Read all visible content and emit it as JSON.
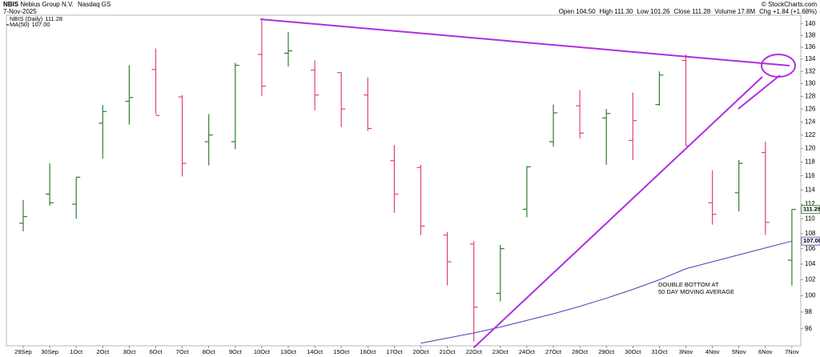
{
  "header": {
    "ticker": "NBIS",
    "company": "Nebius Group N.V.",
    "exchange": "Nasdaq GS",
    "date": "7-Nov-2025",
    "source": "© StockCharts.com",
    "quote": [
      {
        "label": "Open",
        "value": "104.50"
      },
      {
        "label": "High",
        "value": "111.30"
      },
      {
        "label": "Low",
        "value": "101.26"
      },
      {
        "label": "Close",
        "value": "111.28"
      },
      {
        "label": "Volume",
        "value": "17.8M"
      },
      {
        "label": "Chg",
        "value": "+1.84 (+1.68%)"
      }
    ]
  },
  "chart_data": {
    "type": "ohlc",
    "categories": [
      "29Sep",
      "30Sep",
      "1Oct",
      "2Oct",
      "3Oct",
      "6Oct",
      "7Oct",
      "8Oct",
      "9Oct",
      "10Oct",
      "13Oct",
      "14Oct",
      "15Oct",
      "16Oct",
      "17Oct",
      "20Oct",
      "21Oct",
      "22Oct",
      "23Oct",
      "24Oct",
      "27Oct",
      "28Oct",
      "29Oct",
      "30Oct",
      "31Oct",
      "3Nov",
      "4Nov",
      "5Nov",
      "6Nov",
      "7Nov"
    ],
    "series": [
      {
        "name": "NBIS (Daily)",
        "up_color": "#2e7d32",
        "down_color": "#e0407a",
        "open": [
          109.4,
          113.4,
          112.0,
          123.8,
          127.2,
          132.3,
          127.9,
          121.0,
          121.0,
          134.8,
          135.0,
          132.2,
          131.8,
          128.2,
          118.2,
          117.2,
          107.8,
          106.6,
          100.3,
          111.3,
          121.0,
          126.5,
          124.6,
          121.2,
          126.7,
          133.8,
          112.2,
          113.6,
          119.4,
          104.5
        ],
        "high": [
          112.6,
          117.8,
          115.8,
          126.6,
          133.0,
          135.8,
          128.2,
          125.2,
          133.4,
          140.7,
          138.6,
          133.8,
          131.8,
          131.0,
          120.5,
          117.6,
          108.2,
          107.0,
          106.5,
          117.4,
          126.7,
          129.0,
          126.0,
          128.6,
          132.0,
          134.8,
          116.8,
          118.3,
          121.0,
          111.3
        ],
        "low": [
          108.3,
          111.8,
          110.0,
          118.5,
          123.6,
          125.2,
          115.9,
          117.5,
          119.9,
          128.0,
          132.8,
          125.8,
          123.2,
          122.6,
          110.8,
          107.8,
          101.3,
          94.5,
          99.3,
          110.2,
          120.3,
          121.5,
          117.6,
          118.3,
          126.5,
          120.4,
          109.2,
          111.0,
          107.8,
          101.26
        ],
        "close": [
          110.3,
          112.2,
          115.8,
          125.6,
          127.8,
          125.0,
          117.8,
          122.0,
          133.0,
          129.6,
          135.4,
          128.2,
          126.0,
          123.0,
          113.4,
          109.0,
          104.3,
          98.6,
          106.0,
          117.3,
          125.4,
          122.3,
          125.3,
          124.2,
          131.4,
          120.4,
          110.6,
          117.8,
          109.5,
          111.28
        ]
      },
      {
        "name": "MA(50)",
        "color": "#4a3fb5",
        "values": [
          null,
          null,
          null,
          null,
          null,
          null,
          null,
          null,
          null,
          null,
          null,
          null,
          null,
          null,
          null,
          94.3,
          94.9,
          95.5,
          96.2,
          97.0,
          97.8,
          98.7,
          99.7,
          100.8,
          102.0,
          103.4,
          104.3,
          105.2,
          106.1,
          107.0
        ]
      }
    ],
    "price_labels": [
      {
        "value": 111.28,
        "label": "111.28",
        "color": "#2e7d32"
      },
      {
        "value": 107.0,
        "label": "107.00",
        "color": "#4a3fb5"
      }
    ],
    "annotation": [
      "DOUBLE BOTTOM  AT",
      "50 DAY MOVING AVERAGE"
    ],
    "annotation_color": "#2233cc",
    "ylim": [
      94,
      141.5
    ],
    "log_scale": true,
    "yticks": [
      96,
      98,
      100,
      102,
      104,
      106,
      108,
      110,
      112,
      114,
      116,
      118,
      120,
      122,
      124,
      126,
      128,
      130,
      132,
      134,
      136,
      138,
      140
    ]
  }
}
